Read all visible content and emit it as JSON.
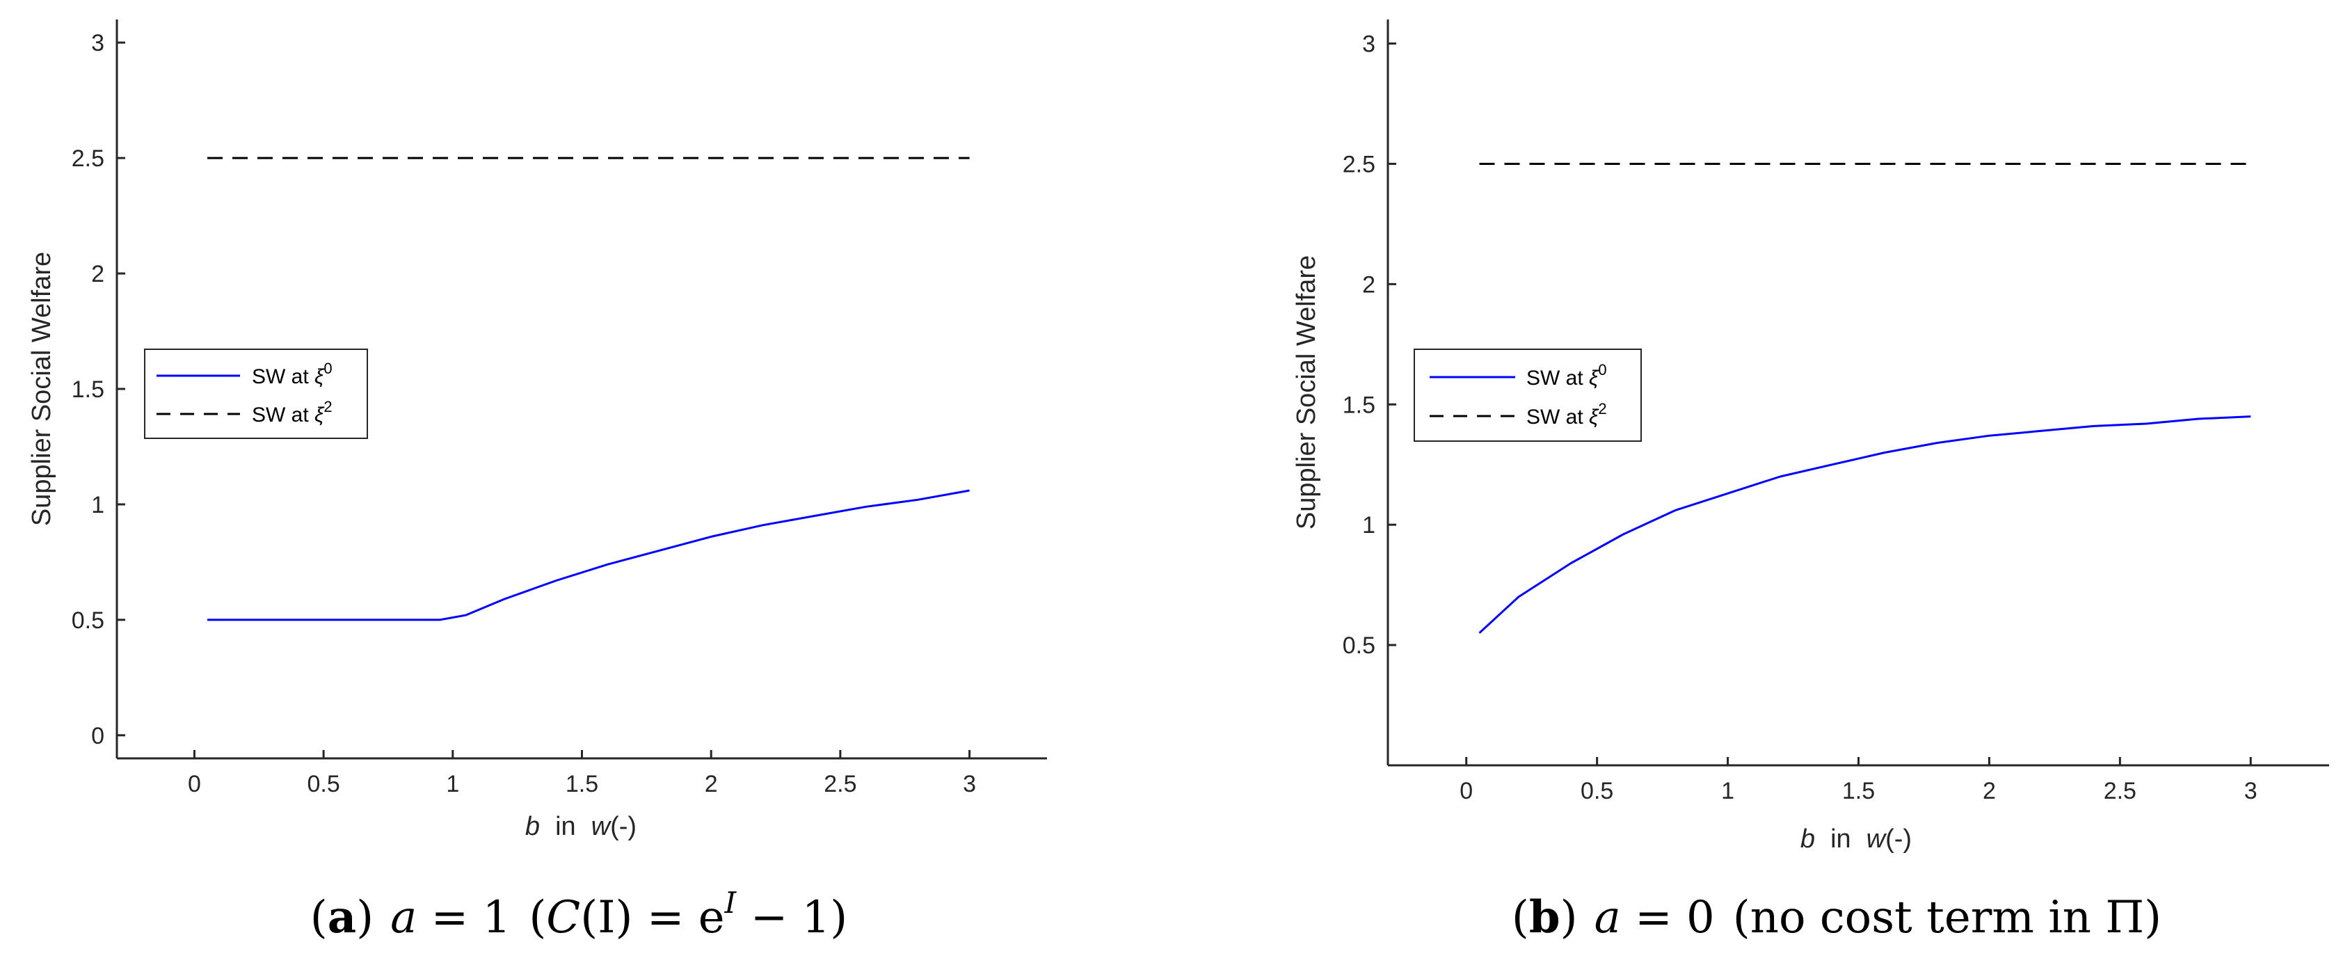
{
  "chart_data": [
    {
      "id": "a",
      "type": "line",
      "xlabel_var": "b",
      "xlabel_mid": "in",
      "xlabel_fn": "w",
      "xlabel_tail": "(-)",
      "ylabel": "Supplier Social Welfare",
      "xlim": [
        -0.3,
        3.3
      ],
      "ylim": [
        -0.1,
        3.1
      ],
      "xticks": [
        0,
        0.5,
        1,
        1.5,
        2,
        2.5,
        3
      ],
      "xtick_labels": [
        "0",
        "0.5",
        "1",
        "1.5",
        "2",
        "2.5",
        "3"
      ],
      "yticks": [
        0,
        0.5,
        1,
        1.5,
        2,
        2.5,
        3
      ],
      "ytick_labels": [
        "0",
        "0.5",
        "1",
        "1.5",
        "2",
        "2.5",
        "3"
      ],
      "legend_position": "center-left",
      "series": [
        {
          "name": "SW at ξ0",
          "legend_label": "SW at ",
          "legend_symbol": "ξ",
          "legend_sup": "0",
          "color": "#0000ff",
          "style": "solid",
          "x": [
            0.05,
            0.2,
            0.4,
            0.6,
            0.8,
            0.95,
            1.05,
            1.2,
            1.4,
            1.6,
            1.8,
            2.0,
            2.2,
            2.4,
            2.6,
            2.8,
            3.0
          ],
          "y": [
            0.5,
            0.5,
            0.5,
            0.5,
            0.5,
            0.5,
            0.52,
            0.59,
            0.67,
            0.74,
            0.8,
            0.86,
            0.91,
            0.95,
            0.99,
            1.02,
            1.06
          ]
        },
        {
          "name": "SW at ξ2",
          "legend_label": "SW at ",
          "legend_symbol": "ξ",
          "legend_sup": "2",
          "color": "#000000",
          "style": "dashed",
          "x": [
            0.05,
            3.0
          ],
          "y": [
            2.5,
            2.5
          ]
        }
      ],
      "caption": {
        "tag": "a",
        "open": "(",
        "close": ")",
        "cond_var": "a",
        "cond_eq": " = 1",
        "func_open": "(",
        "func_name": "C",
        "func_arg": "(I)",
        "func_eq": " = e",
        "func_sup": "I",
        "func_tail": " − 1)"
      }
    },
    {
      "id": "b",
      "type": "line",
      "xlabel_var": "b",
      "xlabel_mid": "in",
      "xlabel_fn": "w",
      "xlabel_tail": "(-)",
      "ylabel": "Supplier Social Welfare",
      "xlim": [
        -0.3,
        3.3
      ],
      "ylim": [
        0.0,
        3.1
      ],
      "xticks": [
        0,
        0.5,
        1,
        1.5,
        2,
        2.5,
        3
      ],
      "xtick_labels": [
        "0",
        "0.5",
        "1",
        "1.5",
        "2",
        "2.5",
        "3"
      ],
      "yticks": [
        0.5,
        1,
        1.5,
        2,
        2.5,
        3
      ],
      "ytick_labels": [
        "0.5",
        "1",
        "1.5",
        "2",
        "2.5",
        "3"
      ],
      "legend_position": "center-left",
      "series": [
        {
          "name": "SW at ξ0",
          "legend_label": "SW at ",
          "legend_symbol": "ξ",
          "legend_sup": "0",
          "color": "#0000ff",
          "style": "solid",
          "x": [
            0.05,
            0.2,
            0.4,
            0.6,
            0.8,
            1.0,
            1.2,
            1.4,
            1.6,
            1.8,
            2.0,
            2.2,
            2.4,
            2.6,
            2.8,
            3.0
          ],
          "y": [
            0.55,
            0.7,
            0.84,
            0.96,
            1.06,
            1.13,
            1.2,
            1.25,
            1.3,
            1.34,
            1.37,
            1.39,
            1.41,
            1.42,
            1.44,
            1.45
          ]
        },
        {
          "name": "SW at ξ2",
          "legend_label": "SW at ",
          "legend_symbol": "ξ",
          "legend_sup": "2",
          "color": "#000000",
          "style": "dashed",
          "x": [
            0.05,
            3.0
          ],
          "y": [
            2.5,
            2.5
          ]
        }
      ],
      "caption": {
        "tag": "b",
        "open": "(",
        "close": ")",
        "cond_var": "a",
        "cond_eq": " = 0",
        "func_text": "(no cost term in  Π)"
      }
    }
  ]
}
